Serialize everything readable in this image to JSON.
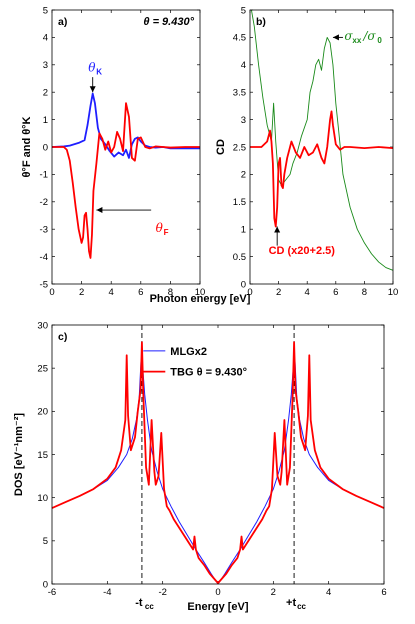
{
  "chart_data": [
    {
      "panel": "a)",
      "type": "line",
      "annotation": "θ = 9.430°",
      "xlabel": "",
      "ylabel": "θ°F and θ°K",
      "xlim": [
        0,
        10
      ],
      "ylim": [
        -5,
        5
      ],
      "xticks": [
        0,
        2,
        4,
        6,
        8,
        10
      ],
      "yticks": [
        -5,
        -4,
        -3,
        -2,
        -1,
        0,
        1,
        2,
        3,
        4,
        5
      ],
      "series": [
        {
          "name": "θK",
          "color": "#1f1fff",
          "x": [
            0,
            0.8,
            1.2,
            1.5,
            1.8,
            2.0,
            2.2,
            2.4,
            2.6,
            2.75,
            2.9,
            3.1,
            3.3,
            3.6,
            3.9,
            4.2,
            4.5,
            4.8,
            5.0,
            5.2,
            5.4,
            5.6,
            5.8,
            6.0,
            6.3,
            6.6,
            7.0,
            7.5,
            8.0,
            9.0,
            10.0
          ],
          "y": [
            0,
            0.02,
            0.05,
            0.1,
            0.15,
            0.2,
            0.25,
            0.8,
            1.5,
            1.95,
            1.6,
            0.7,
            0.3,
            0.1,
            -0.15,
            -0.35,
            -0.2,
            -0.3,
            -0.1,
            -0.4,
            0.1,
            0.3,
            0.35,
            0.2,
            0.05,
            0.0,
            -0.02,
            0.0,
            -0.05,
            -0.05,
            -0.05
          ]
        },
        {
          "name": "θF",
          "color": "#ff0000",
          "x": [
            0,
            0.8,
            1.0,
            1.2,
            1.4,
            1.6,
            1.8,
            2.0,
            2.1,
            2.2,
            2.3,
            2.4,
            2.5,
            2.6,
            2.7,
            2.8,
            3.0,
            3.2,
            3.4,
            3.6,
            3.8,
            4.0,
            4.2,
            4.4,
            4.6,
            4.8,
            5.0,
            5.2,
            5.4,
            5.6,
            5.8,
            6.0,
            6.3,
            6.6,
            7.0,
            7.5,
            8.0,
            9.0,
            10.0
          ],
          "y": [
            0,
            0,
            -0.1,
            -0.5,
            -1.3,
            -2.2,
            -3.0,
            -3.5,
            -3.3,
            -2.5,
            -2.4,
            -3.0,
            -3.8,
            -4.05,
            -3.2,
            -1.6,
            -0.6,
            0.5,
            0.3,
            -0.1,
            0.2,
            -0.2,
            0.0,
            0.55,
            0.3,
            -0.15,
            1.6,
            1.1,
            -0.4,
            -0.5,
            0.3,
            0.35,
            0.0,
            -0.05,
            0.02,
            0.0,
            -0.02,
            0.0,
            0.0
          ]
        }
      ],
      "labels": {
        "theta_k_main": "θ",
        "theta_k_sub": "K",
        "theta_f_main": "θ",
        "theta_f_sub": "F"
      }
    },
    {
      "panel": "b)",
      "type": "line",
      "xlabel": "Photon energy [eV]",
      "ylabel": "CD",
      "xlim": [
        0,
        10
      ],
      "ylim": [
        0,
        5
      ],
      "xticks": [
        0,
        2,
        4,
        6,
        8,
        10
      ],
      "yticks": [
        0,
        0.5,
        1,
        1.5,
        2,
        2.5,
        3,
        3.5,
        4,
        4.5,
        5
      ],
      "series": [
        {
          "name": "σxx/σ0",
          "color": "#1a8a1a",
          "x": [
            0.1,
            0.3,
            0.6,
            0.9,
            1.2,
            1.5,
            1.65,
            1.8,
            2.0,
            2.2,
            2.5,
            2.8,
            3.0,
            3.3,
            3.6,
            4.0,
            4.2,
            4.4,
            4.6,
            4.8,
            5.0,
            5.2,
            5.4,
            5.6,
            5.8,
            6.0,
            6.2,
            6.5,
            7.0,
            7.5,
            8.0,
            8.5,
            9.0,
            9.5,
            10.0
          ],
          "y": [
            5.0,
            4.7,
            4.0,
            3.4,
            2.9,
            2.6,
            3.3,
            2.6,
            1.9,
            1.8,
            1.9,
            2.0,
            2.2,
            2.4,
            2.7,
            3.0,
            3.5,
            3.7,
            4.0,
            4.1,
            3.9,
            4.3,
            4.5,
            4.4,
            4.0,
            3.3,
            2.8,
            2.0,
            1.4,
            1.0,
            0.75,
            0.55,
            0.4,
            0.3,
            0.25
          ]
        },
        {
          "name": "CD (x20+2.5)",
          "color": "#ff0000",
          "x": [
            0,
            0.8,
            1.0,
            1.2,
            1.4,
            1.5,
            1.6,
            1.7,
            1.8,
            1.9,
            2.0,
            2.1,
            2.2,
            2.3,
            2.4,
            2.6,
            2.9,
            3.2,
            3.5,
            3.8,
            4.1,
            4.4,
            4.7,
            5.0,
            5.2,
            5.4,
            5.6,
            5.7,
            5.8,
            6.0,
            6.3,
            6.6,
            7.0,
            8.0,
            9.0,
            10.0
          ],
          "y": [
            2.5,
            2.5,
            2.55,
            2.6,
            2.8,
            2.6,
            2.2,
            1.2,
            1.05,
            1.4,
            2.2,
            2.3,
            1.8,
            1.75,
            2.0,
            2.3,
            2.6,
            2.4,
            2.3,
            2.5,
            2.35,
            2.4,
            2.55,
            2.3,
            2.2,
            2.5,
            3.0,
            3.15,
            2.9,
            2.55,
            2.45,
            2.5,
            2.5,
            2.48,
            2.5,
            2.48
          ]
        }
      ],
      "labels": {
        "sigma_main": "σ",
        "sigma_sub": "xx",
        "sigma_slash": "/σ",
        "sigma_sub0": "0",
        "cd": "CD (x20+2.5)"
      }
    },
    {
      "panel": "c)",
      "type": "line",
      "xlabel": "Energy [eV]",
      "ylabel": "DOS [eV⁻¹nm⁻²]",
      "xlim": [
        -6,
        6
      ],
      "ylim": [
        0,
        30
      ],
      "xticks": [
        -6,
        -4,
        -2,
        0,
        2,
        4,
        6
      ],
      "yticks": [
        0,
        5,
        10,
        15,
        20,
        25,
        30
      ],
      "vlines": [
        -2.75,
        2.75
      ],
      "vline_labels": [
        "-t",
        "+t"
      ],
      "vline_sub": "cc",
      "legend_position": "top-center",
      "series": [
        {
          "name": "MLGx2",
          "color": "#1f1fff",
          "x": [
            -6,
            -5.5,
            -5,
            -4.5,
            -4,
            -3.6,
            -3.3,
            -3.1,
            -2.95,
            -2.85,
            -2.78,
            -2.72,
            -2.65,
            -2.55,
            -2.4,
            -2.2,
            -2.0,
            -1.7,
            -1.4,
            -1.1,
            -0.8,
            -0.5,
            -0.25,
            0,
            0.25,
            0.5,
            0.8,
            1.1,
            1.4,
            1.7,
            2.0,
            2.2,
            2.4,
            2.55,
            2.65,
            2.72,
            2.78,
            2.85,
            2.95,
            3.1,
            3.3,
            3.6,
            4,
            4.5,
            5,
            5.5,
            6
          ],
          "y": [
            8.8,
            9.5,
            10.2,
            11.0,
            12.0,
            13.5,
            15.0,
            16.8,
            19.0,
            21.5,
            26.0,
            25.0,
            22.0,
            19.0,
            15.5,
            13.0,
            11.0,
            9.0,
            7.2,
            5.6,
            4.0,
            2.5,
            1.2,
            0,
            1.2,
            2.5,
            4.0,
            5.6,
            7.2,
            9.0,
            11.0,
            13.0,
            15.5,
            19.0,
            22.0,
            25.0,
            26.0,
            21.5,
            19.0,
            16.8,
            15.0,
            13.5,
            12.0,
            11.0,
            10.2,
            9.5,
            8.8
          ]
        },
        {
          "name": "TBG θ = 9.430°",
          "color": "#ff0000",
          "x": [
            -6,
            -5.5,
            -5,
            -4.5,
            -4,
            -3.7,
            -3.5,
            -3.35,
            -3.3,
            -3.25,
            -3.15,
            -3.0,
            -2.9,
            -2.8,
            -2.75,
            -2.7,
            -2.6,
            -2.5,
            -2.4,
            -2.3,
            -2.25,
            -2.15,
            -2.05,
            -1.95,
            -1.85,
            -1.75,
            -1.6,
            -1.4,
            -1.2,
            -1.0,
            -0.9,
            -0.85,
            -0.8,
            -0.7,
            -0.5,
            -0.3,
            0,
            0.3,
            0.5,
            0.7,
            0.8,
            0.85,
            0.9,
            1.0,
            1.2,
            1.4,
            1.6,
            1.75,
            1.85,
            1.95,
            2.05,
            2.15,
            2.25,
            2.3,
            2.4,
            2.5,
            2.6,
            2.7,
            2.75,
            2.8,
            2.9,
            3.0,
            3.15,
            3.25,
            3.3,
            3.35,
            3.5,
            3.7,
            4,
            4.5,
            5,
            5.5,
            6
          ],
          "y": [
            8.8,
            9.5,
            10.2,
            11.0,
            12.2,
            13.5,
            15.5,
            19.0,
            26.5,
            19.5,
            15.5,
            17.0,
            20.0,
            22.5,
            28.0,
            22.0,
            13.5,
            11.5,
            19.0,
            13.0,
            11.5,
            12.5,
            17.5,
            11.0,
            9.0,
            8.5,
            7.5,
            6.5,
            5.5,
            4.5,
            4.0,
            5.5,
            4.0,
            3.0,
            2.2,
            1.2,
            0.1,
            1.2,
            2.2,
            3.0,
            4.0,
            5.5,
            4.0,
            4.5,
            5.5,
            6.5,
            7.5,
            8.5,
            9.0,
            11.0,
            17.5,
            12.5,
            11.5,
            13.0,
            19.0,
            11.5,
            13.5,
            22.0,
            28.0,
            22.5,
            20.0,
            17.0,
            15.5,
            19.5,
            26.5,
            19.0,
            15.5,
            13.5,
            12.2,
            11.0,
            10.2,
            9.5,
            8.8
          ]
        }
      ]
    }
  ]
}
